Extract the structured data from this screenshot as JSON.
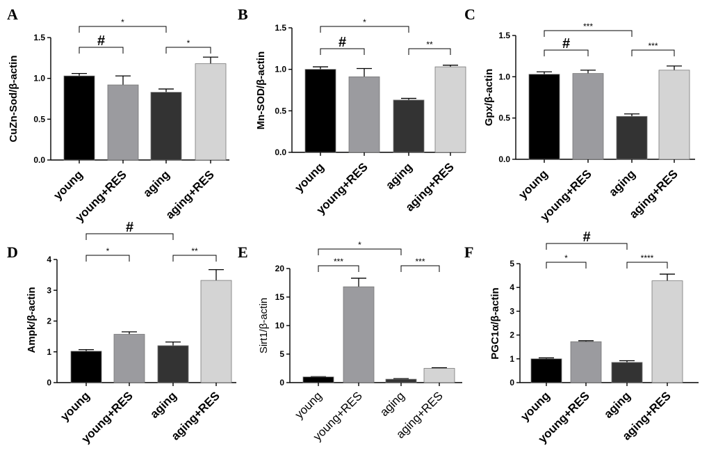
{
  "colors": {
    "young": "#000000",
    "young+RES": "#9b9b9f",
    "aging": "#333333",
    "aging+RES": "#d4d4d4",
    "stroke": "#777777"
  },
  "chart_data": [
    {
      "type": "bar",
      "panel": "A",
      "ylabel": "CuZn-Sod/β-actin",
      "categories": [
        "young",
        "young+RES",
        "aging",
        "aging+RES"
      ],
      "values": [
        1.03,
        0.92,
        0.83,
        1.18
      ],
      "errors": [
        0.03,
        0.11,
        0.04,
        0.08
      ],
      "ylim": [
        0,
        1.5
      ],
      "yticks": [
        "0.0",
        "0.5",
        "1.0",
        "1.5"
      ],
      "significance": [
        {
          "from": 0,
          "to": 1,
          "label": "#"
        },
        {
          "from": 2,
          "to": 3,
          "label": "*"
        },
        {
          "from": 0,
          "to": 2,
          "label": "*"
        }
      ]
    },
    {
      "type": "bar",
      "panel": "B",
      "ylabel": "Mn-SOD/β-actin",
      "categories": [
        "young",
        "young+RES",
        "aging",
        "aging+RES"
      ],
      "values": [
        1.0,
        0.91,
        0.63,
        1.03
      ],
      "errors": [
        0.03,
        0.1,
        0.02,
        0.02
      ],
      "ylim": [
        0,
        1.5
      ],
      "yticks": [
        "0.0",
        "0.5",
        "1.0",
        "1.5"
      ],
      "significance": [
        {
          "from": 0,
          "to": 1,
          "label": "#"
        },
        {
          "from": 2,
          "to": 3,
          "label": "**"
        },
        {
          "from": 0,
          "to": 2,
          "label": "*"
        }
      ]
    },
    {
      "type": "bar",
      "panel": "C",
      "ylabel": "Gpx/β-actin",
      "categories": [
        "young",
        "young+RES",
        "aging",
        "aging+RES"
      ],
      "values": [
        1.03,
        1.04,
        0.52,
        1.08
      ],
      "errors": [
        0.03,
        0.04,
        0.03,
        0.05
      ],
      "ylim": [
        0,
        1.5
      ],
      "yticks": [
        "0.0",
        "0.5",
        "1.0",
        "1.5"
      ],
      "significance": [
        {
          "from": 0,
          "to": 1,
          "label": "#"
        },
        {
          "from": 2,
          "to": 3,
          "label": "***"
        },
        {
          "from": 0,
          "to": 2,
          "label": "***"
        }
      ]
    },
    {
      "type": "bar",
      "panel": "D",
      "ylabel": "Ampk/β-actin",
      "categories": [
        "young",
        "young+RES",
        "aging",
        "aging+RES"
      ],
      "values": [
        1.02,
        1.57,
        1.2,
        3.32
      ],
      "errors": [
        0.05,
        0.08,
        0.12,
        0.35
      ],
      "ylim": [
        0,
        4
      ],
      "yticks": [
        "0",
        "1",
        "2",
        "3",
        "4"
      ],
      "significance": [
        {
          "from": 0,
          "to": 1,
          "label": "*"
        },
        {
          "from": 2,
          "to": 3,
          "label": "**"
        },
        {
          "from": 0,
          "to": 2,
          "label": "#"
        }
      ]
    },
    {
      "type": "bar",
      "panel": "E",
      "ylabel": "Sirt1/β-actin",
      "categories": [
        "young",
        "young+RES",
        "aging",
        "aging+RES"
      ],
      "values": [
        1.0,
        16.8,
        0.6,
        2.5
      ],
      "errors": [
        0.05,
        1.5,
        0.1,
        0.1
      ],
      "ylim": [
        0,
        20
      ],
      "yticks": [
        "0",
        "5",
        "10",
        "15",
        "20"
      ],
      "significance": [
        {
          "from": 0,
          "to": 1,
          "label": "***"
        },
        {
          "from": 2,
          "to": 3,
          "label": "***"
        },
        {
          "from": 0,
          "to": 2,
          "label": "*"
        }
      ]
    },
    {
      "type": "bar",
      "panel": "F",
      "ylabel": "PGC1α/β-actin",
      "categories": [
        "young",
        "young+RES",
        "aging",
        "aging+RES"
      ],
      "values": [
        1.0,
        1.72,
        0.85,
        4.28
      ],
      "errors": [
        0.04,
        0.04,
        0.07,
        0.28
      ],
      "ylim": [
        0,
        5
      ],
      "yticks": [
        "0",
        "1",
        "2",
        "3",
        "4",
        "5"
      ],
      "significance": [
        {
          "from": 0,
          "to": 1,
          "label": "*"
        },
        {
          "from": 2,
          "to": 3,
          "label": "****"
        },
        {
          "from": 0,
          "to": 2,
          "label": "#"
        }
      ]
    }
  ]
}
